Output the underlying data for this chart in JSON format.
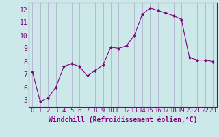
{
  "x": [
    0,
    1,
    2,
    3,
    4,
    5,
    6,
    7,
    8,
    9,
    10,
    11,
    12,
    13,
    14,
    15,
    16,
    17,
    18,
    19,
    20,
    21,
    22,
    23
  ],
  "y": [
    7.2,
    4.9,
    5.2,
    6.0,
    7.6,
    7.8,
    7.6,
    6.9,
    7.3,
    7.7,
    9.1,
    9.0,
    9.2,
    10.0,
    11.6,
    12.1,
    11.9,
    11.7,
    11.5,
    11.2,
    8.3,
    8.1,
    8.1,
    8.0
  ],
  "line_color": "#800080",
  "marker": "D",
  "marker_size": 2,
  "bg_color": "#cce8e8",
  "grid_color": "#aaaacc",
  "xlabel": "Windchill (Refroidissement éolien,°C)",
  "xlabel_color": "#800080",
  "ylabel_ticks": [
    5,
    6,
    7,
    8,
    9,
    10,
    11,
    12
  ],
  "xtick_labels": [
    "0",
    "1",
    "2",
    "3",
    "4",
    "5",
    "6",
    "7",
    "8",
    "9",
    "10",
    "11",
    "12",
    "13",
    "14",
    "15",
    "16",
    "17",
    "18",
    "19",
    "20",
    "21",
    "22",
    "23"
  ],
  "ylim": [
    4.5,
    12.5
  ],
  "xlim": [
    -0.5,
    23.5
  ],
  "tick_color": "#800080",
  "tick_label_color": "#800080",
  "border_color": "#800080",
  "font_size": 6.5
}
